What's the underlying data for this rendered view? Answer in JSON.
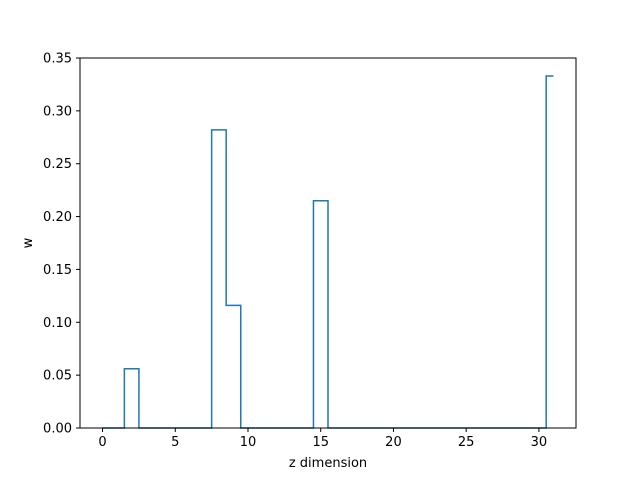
{
  "chart_data": {
    "type": "line",
    "drawstyle": "steps-mid",
    "xlabel": "z dimension",
    "ylabel": "w",
    "xlim": [
      -1.55,
      32.55
    ],
    "ylim": [
      0.0,
      0.35
    ],
    "xticks": [
      0,
      5,
      10,
      15,
      20,
      25,
      30
    ],
    "yticks": [
      0.0,
      0.05,
      0.1,
      0.15,
      0.2,
      0.25,
      0.3,
      0.35
    ],
    "xtick_labels": [
      "0",
      "5",
      "10",
      "15",
      "20",
      "25",
      "30"
    ],
    "ytick_labels": [
      "0.00",
      "0.05",
      "0.10",
      "0.15",
      "0.20",
      "0.25",
      "0.30",
      "0.35"
    ],
    "grid": false,
    "series": [
      {
        "color": "#1f77b4",
        "x": [
          0,
          1,
          2,
          3,
          4,
          5,
          6,
          7,
          8,
          9,
          10,
          11,
          12,
          13,
          14,
          15,
          16,
          17,
          18,
          19,
          20,
          21,
          22,
          23,
          24,
          25,
          26,
          27,
          28,
          29,
          30,
          31
        ],
        "y": [
          0,
          0,
          0.056,
          0,
          0,
          0,
          0,
          0,
          0.282,
          0.116,
          0,
          0,
          0,
          0,
          0,
          0.215,
          0,
          0,
          0,
          0,
          0,
          0,
          0,
          0,
          0,
          0,
          0,
          0,
          0,
          0,
          0,
          0.333
        ]
      }
    ]
  }
}
